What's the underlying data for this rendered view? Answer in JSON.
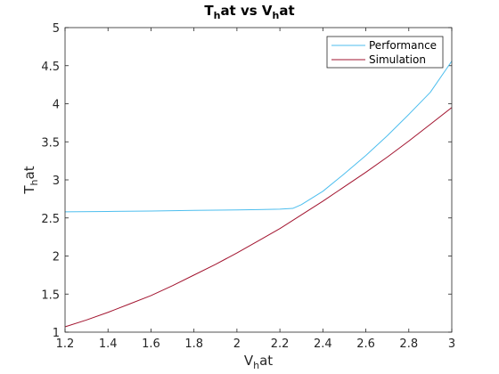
{
  "chart_data": {
    "type": "line",
    "title": {
      "main": "T",
      "main_sub": "h",
      "main_rest": "at vs V",
      "main_rest_sub": "h",
      "main_end": "at"
    },
    "xlabel": {
      "base": "V",
      "sub": "h",
      "rest": "at"
    },
    "ylabel": {
      "base": "T",
      "sub": "h",
      "rest": "at"
    },
    "xlim": [
      1.2,
      3
    ],
    "ylim": [
      1,
      5
    ],
    "xticks": [
      1.2,
      1.4,
      1.6,
      1.8,
      2,
      2.2,
      2.4,
      2.6,
      2.8,
      3
    ],
    "xtick_labels": [
      "1.2",
      "1.4",
      "1.6",
      "1.8",
      "2",
      "2.2",
      "2.4",
      "2.6",
      "2.8",
      "3"
    ],
    "yticks": [
      1,
      1.5,
      2,
      2.5,
      3,
      3.5,
      4,
      4.5,
      5
    ],
    "ytick_labels": [
      "1",
      "1.5",
      "2",
      "2.5",
      "3",
      "3.5",
      "4",
      "4.5",
      "5"
    ],
    "grid": false,
    "legend_position": "top-right",
    "series": [
      {
        "name": "Performance",
        "color": "#4dbeee",
        "x": [
          1.2,
          1.4,
          1.6,
          1.8,
          2.0,
          2.1,
          2.2,
          2.26,
          2.3,
          2.4,
          2.5,
          2.6,
          2.7,
          2.8,
          2.9,
          3.0
        ],
        "y": [
          2.58,
          2.585,
          2.59,
          2.6,
          2.605,
          2.61,
          2.615,
          2.625,
          2.675,
          2.85,
          3.08,
          3.32,
          3.58,
          3.86,
          4.15,
          4.56
        ]
      },
      {
        "name": "Simulation",
        "color": "#a2142f",
        "x": [
          1.2,
          1.3,
          1.4,
          1.5,
          1.6,
          1.7,
          1.8,
          1.9,
          2.0,
          2.1,
          2.2,
          2.3,
          2.4,
          2.5,
          2.6,
          2.7,
          2.8,
          2.9,
          3.0
        ],
        "y": [
          1.07,
          1.16,
          1.26,
          1.37,
          1.48,
          1.61,
          1.75,
          1.89,
          2.04,
          2.2,
          2.36,
          2.54,
          2.72,
          2.91,
          3.1,
          3.3,
          3.51,
          3.73,
          3.95
        ]
      }
    ]
  }
}
